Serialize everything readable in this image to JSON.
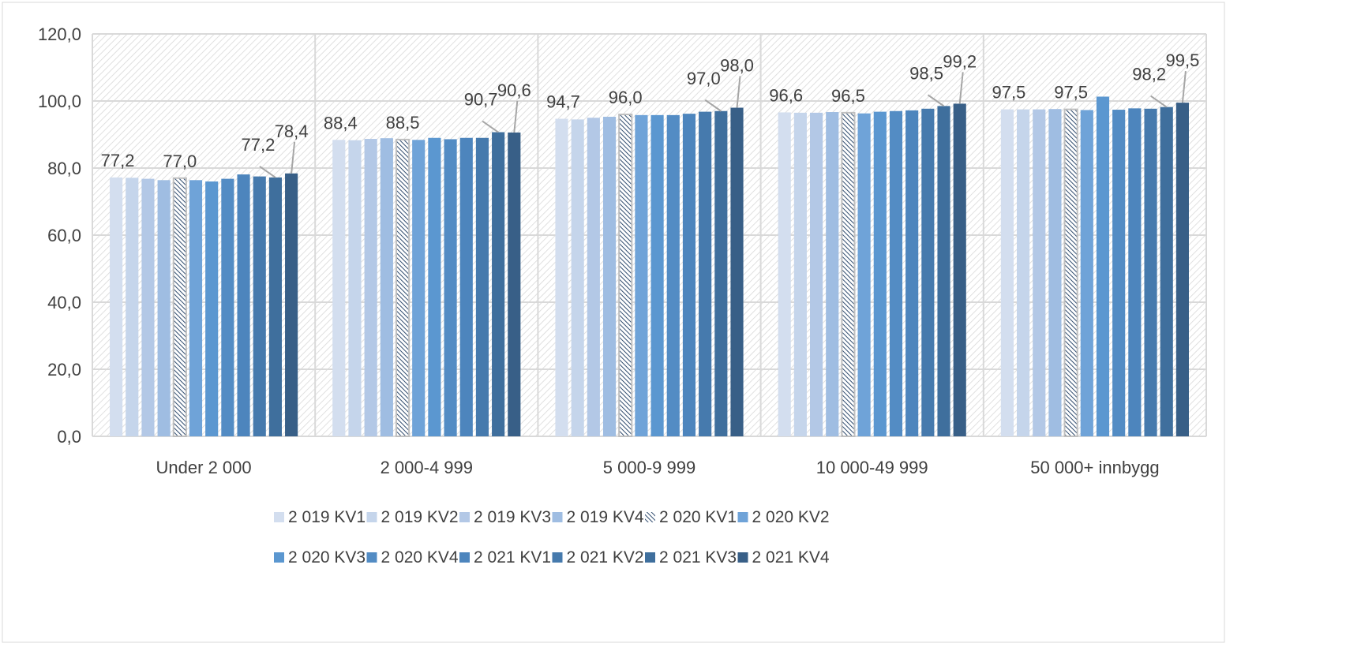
{
  "chart_data": {
    "type": "bar",
    "categories": [
      "Under 2 000",
      "2 000-4 999",
      "5 000-9 999",
      "10 000-49 999",
      "50 000+ innbygg"
    ],
    "ylim": [
      0,
      120
    ],
    "yticks": [
      "0,0",
      "20,0",
      "40,0",
      "60,0",
      "80,0",
      "100,0",
      "120,0"
    ],
    "grid": true,
    "legend_position": "bottom",
    "series": [
      {
        "name": "2 019 KV1",
        "color": "#d3deef",
        "values": [
          77.2,
          88.4,
          94.7,
          96.6,
          97.5
        ]
      },
      {
        "name": "2 019 KV2",
        "color": "#c5d5eb",
        "values": [
          77.1,
          88.3,
          94.5,
          96.5,
          97.5
        ]
      },
      {
        "name": "2 019 KV3",
        "color": "#b3c8e6",
        "values": [
          76.8,
          88.7,
          95.0,
          96.5,
          97.5
        ]
      },
      {
        "name": "2 019 KV4",
        "color": "#9fbde2",
        "values": [
          76.4,
          88.9,
          95.3,
          96.7,
          97.6
        ]
      },
      {
        "name": "2 020 KV1",
        "color": "#3b5f86",
        "pattern": "hatched",
        "values": [
          77.0,
          88.5,
          96.0,
          96.5,
          97.5
        ]
      },
      {
        "name": "2 020 KV2",
        "color": "#6fa3d8",
        "values": [
          76.4,
          88.4,
          95.8,
          96.3,
          97.3
        ]
      },
      {
        "name": "2 020 KV3",
        "color": "#5b97d0",
        "values": [
          76.0,
          89.0,
          95.8,
          96.8,
          101.3
        ]
      },
      {
        "name": "2 020 KV4",
        "color": "#538cc4",
        "values": [
          76.8,
          88.6,
          95.8,
          97.0,
          97.4
        ]
      },
      {
        "name": "2 021 KV1",
        "color": "#4d85bd",
        "values": [
          78.1,
          89.0,
          96.2,
          97.2,
          97.8
        ]
      },
      {
        "name": "2 021 KV2",
        "color": "#467aad",
        "values": [
          77.5,
          89.0,
          96.8,
          97.7,
          97.7
        ]
      },
      {
        "name": "2 021 KV3",
        "color": "#3f6f9d",
        "values": [
          77.2,
          90.7,
          97.0,
          98.5,
          98.2
        ]
      },
      {
        "name": "2 021 KV4",
        "color": "#385f87",
        "values": [
          78.4,
          90.6,
          98.0,
          99.2,
          99.5
        ]
      }
    ],
    "data_labels": [
      {
        "series": 0,
        "labels": [
          "77,2",
          "88,4",
          "94,7",
          "96,6",
          "97,5"
        ]
      },
      {
        "series": 4,
        "labels": [
          "77,0",
          "88,5",
          "96,0",
          "96,5",
          "97,5"
        ]
      },
      {
        "series": 10,
        "labels": [
          "77,2",
          "90,7",
          "97,0",
          "98,5",
          "98,2"
        ]
      },
      {
        "series": 11,
        "labels": [
          "78,4",
          "90,6",
          "98,0",
          "99,2",
          "99,5"
        ]
      }
    ]
  }
}
